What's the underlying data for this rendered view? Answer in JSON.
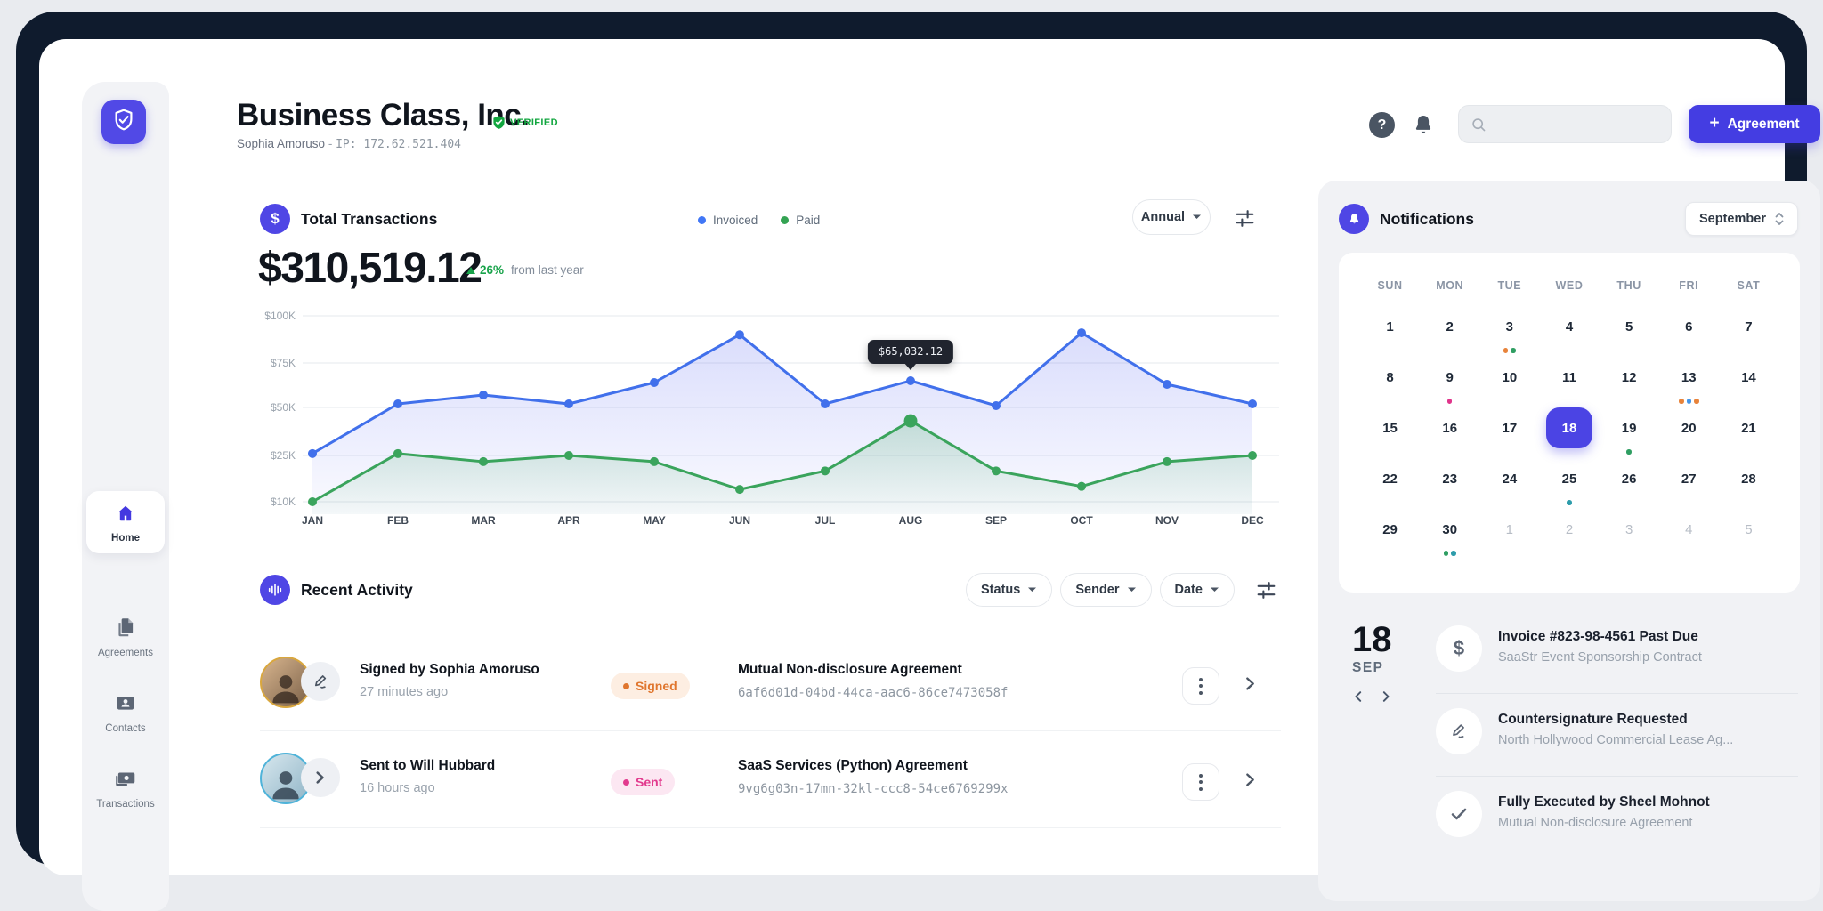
{
  "header": {
    "company": "Business Class, Inc.",
    "verified_label": "VERIFIED",
    "user": "Sophia Amoruso",
    "separator": "-",
    "ip": "IP: 172.62.521.404",
    "search_placeholder": "",
    "agreement_button": {
      "icon": "plus-icon",
      "plus": "+",
      "label": "Agreement"
    }
  },
  "sidebar": {
    "items": [
      {
        "label": "Home",
        "icon": "home-icon",
        "active": true
      },
      {
        "label": "Agreements",
        "icon": "documents-icon",
        "active": false
      },
      {
        "label": "Contacts",
        "icon": "contact-card-icon",
        "active": false
      },
      {
        "label": "Transactions",
        "icon": "banknote-icon",
        "active": false
      }
    ]
  },
  "transactions": {
    "title": "Total Transactions",
    "total": "$310,519.12",
    "delta_pct": "26%",
    "delta_note": "from last year",
    "range_selector": "Annual",
    "legend": [
      {
        "label": "Invoiced",
        "color": "#4177f6"
      },
      {
        "label": "Paid",
        "color": "#34a353"
      }
    ]
  },
  "chart_data": {
    "type": "line",
    "x": [
      "JAN",
      "FEB",
      "MAR",
      "APR",
      "MAY",
      "JUN",
      "JUL",
      "AUG",
      "SEP",
      "OCT",
      "NOV",
      "DEC"
    ],
    "y_ticks": [
      {
        "v": 100,
        "label": "$100K"
      },
      {
        "v": 75,
        "label": "$75K"
      },
      {
        "v": 50,
        "label": "$50K"
      },
      {
        "v": 25,
        "label": "$25K"
      },
      {
        "v": 10,
        "label": "$10K"
      }
    ],
    "series": [
      {
        "name": "Invoiced",
        "color": "#4170eb",
        "values": [
          26,
          52,
          57,
          52,
          64,
          90,
          52,
          65,
          51,
          91,
          63,
          52
        ]
      },
      {
        "name": "Paid",
        "color": "#3aa45c",
        "values": [
          10,
          26,
          23,
          25,
          23,
          14,
          20,
          43,
          20,
          15,
          23,
          25
        ]
      }
    ],
    "unit": "K USD",
    "grid": true,
    "legend_position": "top",
    "tooltip": {
      "x": "AUG",
      "series": "Invoiced",
      "label": "$65,032.12"
    },
    "highlight_point": {
      "x": "AUG",
      "series": "Paid"
    }
  },
  "activity": {
    "title": "Recent Activity",
    "filters": [
      "Status",
      "Sender",
      "Date"
    ],
    "rows": [
      {
        "title": "Signed by Sophia Amoruso",
        "time": "27 minutes ago",
        "badge": {
          "label": "Signed",
          "color": "#e0762e",
          "bg": "#fdeee2"
        },
        "agreement": "Mutual Non-disclosure Agreement",
        "id": "6af6d01d-04bd-44ca-aac6-86ce7473058f",
        "ring": "#d9a73e",
        "action_icon": "signature-pen-icon"
      },
      {
        "title": "Sent to Will Hubbard",
        "time": "16 hours ago",
        "badge": {
          "label": "Sent",
          "color": "#e23a8e",
          "bg": "#fce7f2"
        },
        "agreement": "SaaS Services (Python) Agreement",
        "id": "9vg6g03n-17mn-32kl-ccc8-54ce6769299x",
        "ring": "#4fb3d9",
        "action_icon": "send-arrow-icon"
      }
    ]
  },
  "notifications": {
    "title": "Notifications",
    "month_selector": "September",
    "weekdays": [
      "SUN",
      "MON",
      "TUE",
      "WED",
      "THU",
      "FRI",
      "SAT"
    ],
    "selected_day": 18,
    "days": [
      {
        "n": 1
      },
      {
        "n": 2
      },
      {
        "n": 3,
        "dots": [
          "#e8833a",
          "#2f9e62"
        ]
      },
      {
        "n": 4
      },
      {
        "n": 5
      },
      {
        "n": 6
      },
      {
        "n": 7
      },
      {
        "n": 8
      },
      {
        "n": 9,
        "dots": [
          "#e0348b"
        ]
      },
      {
        "n": 10
      },
      {
        "n": 11
      },
      {
        "n": 12
      },
      {
        "n": 13,
        "dots": [
          "#e8833a",
          "#4596e8",
          "#e8833a"
        ]
      },
      {
        "n": 14
      },
      {
        "n": 15
      },
      {
        "n": 16
      },
      {
        "n": 17
      },
      {
        "n": 18,
        "selected": true
      },
      {
        "n": 19,
        "dots": [
          "#2f9e62"
        ]
      },
      {
        "n": 20
      },
      {
        "n": 21
      },
      {
        "n": 22
      },
      {
        "n": 23
      },
      {
        "n": 24
      },
      {
        "n": 25,
        "dots": [
          "#2d9cab"
        ]
      },
      {
        "n": 26
      },
      {
        "n": 27
      },
      {
        "n": 28
      },
      {
        "n": 29
      },
      {
        "n": 30,
        "dots": [
          "#2f9e62",
          "#2d9cab"
        ]
      },
      {
        "n": 1,
        "muted": true
      },
      {
        "n": 2,
        "muted": true
      },
      {
        "n": 3,
        "muted": true
      },
      {
        "n": 4,
        "muted": true
      },
      {
        "n": 5,
        "muted": true
      }
    ],
    "day_detail": {
      "day": "18",
      "month_abbr": "SEP",
      "items": [
        {
          "icon": "dollar-icon",
          "title": "Invoice #823-98-4561 Past Due",
          "subtitle": "SaaStr Event Sponsorship Contract"
        },
        {
          "icon": "signature-pen-icon",
          "title": "Countersignature Requested",
          "subtitle": "North Hollywood Commercial Lease Ag..."
        },
        {
          "icon": "check-icon",
          "title": "Fully Executed by Sheel Mohnot",
          "subtitle": "Mutual Non-disclosure Agreement"
        }
      ]
    }
  }
}
